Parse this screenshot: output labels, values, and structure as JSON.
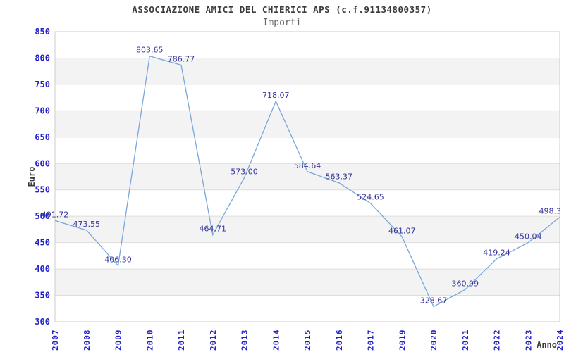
{
  "chart_data": {
    "type": "line",
    "title": "ASSOCIAZIONE AMICI DEL CHIERICI APS (c.f.91134800357)",
    "subtitle": "Importi",
    "xlabel": "Anno",
    "ylabel": "Euro",
    "categories": [
      "2007",
      "2008",
      "2009",
      "2010",
      "2011",
      "2012",
      "2013",
      "2014",
      "2015",
      "2016",
      "2017",
      "2019",
      "2020",
      "2021",
      "2022",
      "2023",
      "2024"
    ],
    "values": [
      491.72,
      473.55,
      406.3,
      803.65,
      786.77,
      464.71,
      573.0,
      718.07,
      584.64,
      563.37,
      524.65,
      461.07,
      328.67,
      360.99,
      419.24,
      450.04,
      498.3
    ],
    "point_labels": [
      "491.72",
      "473.55",
      "406.30",
      "803.65",
      "786.77",
      "464.71",
      "573.00",
      "718.07",
      "584.64",
      "563.37",
      "524.65",
      "461.07",
      "328.67",
      "360.99",
      "419.24",
      "450.04",
      "498.3"
    ],
    "ylim": [
      300,
      850
    ],
    "ytick_step": 50,
    "ytick_labels": [
      "300",
      "350",
      "400",
      "450",
      "500",
      "550",
      "600",
      "650",
      "700",
      "750",
      "800",
      "850"
    ],
    "grid": true,
    "legend": "none",
    "colors": {
      "line": "#79a7db",
      "point_label": "#333399",
      "tick_label": "#2222cc",
      "axis_label": "#3b3b3b",
      "band": "#f3f3f3",
      "gridline": "#dddddd",
      "border": "#cccccc",
      "background": "#ffffff"
    }
  }
}
